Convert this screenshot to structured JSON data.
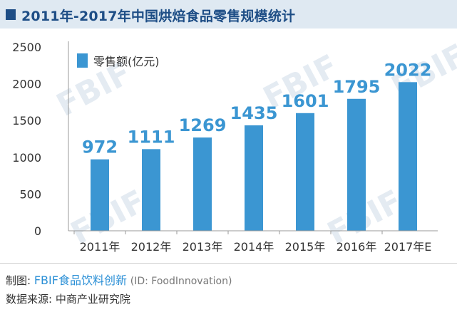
{
  "header": {
    "title": "2011年-2017年中国烘焙食品零售规模统计"
  },
  "chart_data": {
    "type": "bar",
    "categories": [
      "2011年",
      "2012年",
      "2013年",
      "2014年",
      "2015年",
      "2016年",
      "2017年E"
    ],
    "series": [
      {
        "name": "零售额(亿元)",
        "values": [
          972,
          1111,
          1269,
          1435,
          1601,
          1795,
          2022
        ]
      }
    ],
    "data_labels": [
      "972",
      "1111",
      "1269",
      "1435",
      "1601",
      "1795",
      "2022"
    ],
    "ylim": [
      0,
      2500
    ],
    "y_ticks": [
      "0",
      "500",
      "1000",
      "1500",
      "2000",
      "2500"
    ],
    "xlabel": "",
    "ylabel": "",
    "grid": false,
    "legend_position": "top-left",
    "colors": {
      "bar": "#3b96d2",
      "data_label": "#3b96d2"
    }
  },
  "watermark": "FBIF",
  "footer": {
    "maker_label": "制图:",
    "maker_brand": "FBIF食品饮料创新",
    "maker_id": "(ID: FoodInnovation)",
    "source": "数据来源: 中商产业研究院"
  }
}
